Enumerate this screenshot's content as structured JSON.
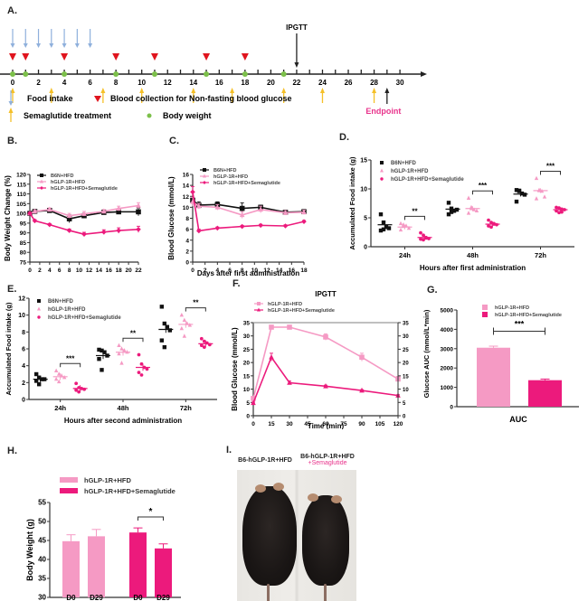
{
  "panels": {
    "A": "A.",
    "B": "B.",
    "C": "C.",
    "D": "D.",
    "E": "E.",
    "F": "F.",
    "G": "G.",
    "H": "H.",
    "I": "I."
  },
  "timeline": {
    "ticks": [
      0,
      1,
      2,
      3,
      4,
      5,
      6,
      7,
      8,
      9,
      10,
      11,
      12,
      13,
      14,
      15,
      16,
      17,
      18,
      19,
      20,
      21,
      22,
      23,
      24,
      25,
      26,
      27,
      28,
      29,
      30
    ],
    "tick_labels": [
      0,
      2,
      4,
      6,
      8,
      10,
      12,
      14,
      16,
      18,
      20,
      22,
      24,
      26,
      28,
      30
    ],
    "food_intake_days": [
      0,
      1,
      2,
      3,
      4,
      5,
      6
    ],
    "blood_collection_days": [
      0,
      1,
      4,
      8,
      11,
      15,
      18
    ],
    "body_weight_days": [
      0,
      1,
      4,
      8,
      11,
      15,
      18,
      21
    ],
    "semaglutide_days": [
      0,
      3,
      7,
      10,
      14,
      17,
      21,
      24,
      28
    ],
    "ipgtt_day": 22,
    "ipgtt_label": "IPGTT",
    "endpoint_day": 29,
    "endpoint_label": "Endpoint",
    "legend": {
      "food_intake": "Food intake",
      "blood_collection": "Blood collection for Non-fasting blood glucose",
      "semaglutide": "Semaglutide treatment",
      "body_weight": "Body weight"
    },
    "colors": {
      "food": "#8fb0dc",
      "blood": "#e0141e",
      "sema": "#f5c028",
      "bw": "#7cc04a",
      "endpoint": "#e8348c"
    }
  },
  "colors": {
    "black": "#111111",
    "light_pink": "#f59ac4",
    "hot_pink": "#ec1a7c"
  },
  "chart_data": [
    {
      "id": "B",
      "type": "line",
      "title": "",
      "xlabel": "Days after first administration",
      "ylabel": "Body Weight Change (%)",
      "xlim": [
        0,
        22
      ],
      "ylim": [
        75,
        120
      ],
      "xticks": [
        0,
        2,
        4,
        6,
        8,
        10,
        12,
        14,
        16,
        18,
        20,
        22
      ],
      "yticks": [
        75,
        80,
        85,
        90,
        95,
        100,
        105,
        110,
        115,
        120
      ],
      "legend_position": "top-left",
      "series": [
        {
          "name": "B6N+HFD",
          "color": "#111111",
          "marker": "square",
          "x": [
            0,
            1,
            4,
            8,
            11,
            15,
            18,
            22
          ],
          "y": [
            100,
            101,
            101.5,
            97.2,
            98.8,
            100.5,
            100.8,
            100.8
          ],
          "err": [
            0.5,
            0.8,
            0.8,
            2.0,
            1.2,
            1.0,
            1.2,
            2.0
          ]
        },
        {
          "name": "hGLP-1R+HFD",
          "color": "#f59ac4",
          "marker": "triangle",
          "x": [
            0,
            1,
            4,
            8,
            11,
            15,
            18,
            22
          ],
          "y": [
            100,
            101,
            102,
            98.8,
            99.8,
            101,
            102.5,
            104
          ],
          "err": [
            0.5,
            0.8,
            0.8,
            1.2,
            1.2,
            1.0,
            1.2,
            1.5
          ]
        },
        {
          "name": "hGLP-1R+HFD+Semaglutide",
          "color": "#ec1a7c",
          "marker": "diamond",
          "x": [
            0,
            1,
            4,
            8,
            11,
            15,
            18,
            22
          ],
          "y": [
            100,
            96.2,
            94.2,
            91.2,
            89.3,
            90.4,
            91.2,
            91.8
          ],
          "err": [
            0.5,
            0.6,
            0.6,
            0.8,
            1.0,
            1.2,
            1.4,
            1.6
          ]
        }
      ]
    },
    {
      "id": "C",
      "type": "line",
      "title": "",
      "xlabel": "Days after first administration",
      "ylabel": "Blood Glucose (mmol/L)",
      "xlim": [
        0,
        18
      ],
      "ylim": [
        0,
        16
      ],
      "xticks": [
        0,
        2,
        4,
        6,
        8,
        10,
        12,
        14,
        16,
        18
      ],
      "yticks": [
        0,
        2,
        4,
        6,
        8,
        10,
        12,
        14,
        16
      ],
      "legend_position": "top",
      "series": [
        {
          "name": "B6N+HFD",
          "color": "#111111",
          "marker": "square",
          "x": [
            0,
            1,
            4,
            8,
            11,
            15,
            18
          ],
          "y": [
            11.3,
            10.4,
            10.5,
            9.8,
            10.0,
            9.1,
            9.2
          ],
          "err": [
            0.5,
            0.6,
            0.5,
            1.0,
            0.4,
            0.4,
            0.4
          ]
        },
        {
          "name": "hGLP-1R+HFD",
          "color": "#f59ac4",
          "marker": "triangle",
          "x": [
            0,
            1,
            4,
            8,
            11,
            15,
            18
          ],
          "y": [
            11.0,
            10.2,
            10.0,
            8.6,
            9.6,
            9.0,
            9.1
          ],
          "err": [
            0.8,
            0.5,
            0.5,
            0.6,
            0.6,
            0.4,
            0.4
          ]
        },
        {
          "name": "hGLP-1R+HFD+Semaglutide",
          "color": "#ec1a7c",
          "marker": "diamond",
          "x": [
            0,
            1,
            4,
            8,
            11,
            15,
            18
          ],
          "y": [
            12.8,
            5.7,
            6.2,
            6.5,
            6.7,
            6.6,
            7.4
          ],
          "err": [
            1.0,
            0.3,
            0.2,
            0.2,
            0.2,
            0.2,
            0.2
          ]
        }
      ]
    },
    {
      "id": "D",
      "type": "scatter",
      "title": "",
      "xlabel": "Hours after first administration",
      "ylabel": "Accumulated Food intake (g)",
      "ylim": [
        0,
        15
      ],
      "yticks": [
        0,
        5,
        10,
        15
      ],
      "categories": [
        "24h",
        "48h",
        "72h"
      ],
      "legend_position": "top-left",
      "significance": [
        "**",
        "***",
        "***"
      ],
      "series": [
        {
          "name": "B6N+HFD",
          "color": "#111111",
          "marker": "square",
          "points": [
            [
              5.6,
              4.2,
              3.4,
              3.2,
              2.8,
              3.0
            ],
            [
              7.6,
              6.6,
              6.2,
              6.4,
              5.6,
              6.0
            ],
            [
              9.8,
              9.6,
              9.2,
              9.0,
              7.8,
              9.7
            ]
          ],
          "mean": [
            3.8,
            6.5,
            9.1
          ]
        },
        {
          "name": "hGLP-1R+HFD",
          "color": "#f59ac4",
          "marker": "triangle",
          "points": [
            [
              4.0,
              3.8,
              3.6,
              3.2,
              2.9,
              3.5
            ],
            [
              8.4,
              6.8,
              6.4,
              6.2,
              5.8,
              6.6
            ],
            [
              11.8,
              9.8,
              9.6,
              8.6,
              8.3,
              9.7
            ]
          ],
          "mean": [
            3.4,
            6.6,
            9.7
          ]
        },
        {
          "name": "hGLP-1R+HFD+Semaglutide",
          "color": "#ec1a7c",
          "marker": "circle",
          "points": [
            [
              2.4,
              2.0,
              1.6,
              1.4,
              1.3,
              1.2,
              1.5
            ],
            [
              4.6,
              4.2,
              4.0,
              3.8,
              3.6,
              3.4,
              3.9
            ],
            [
              6.8,
              6.7,
              6.5,
              6.4,
              6.2,
              5.9,
              6.0
            ]
          ],
          "mean": [
            1.6,
            3.9,
            6.4
          ]
        }
      ]
    },
    {
      "id": "E",
      "type": "scatter",
      "title": "",
      "xlabel": "Hours after second administration",
      "ylabel": "Accumulated Food intake (g)",
      "ylim": [
        0,
        12
      ],
      "yticks": [
        0,
        2,
        4,
        6,
        8,
        10,
        12
      ],
      "categories": [
        "24h",
        "48h",
        "72h"
      ],
      "legend_position": "top-left",
      "significance": [
        "***",
        "**",
        "**"
      ],
      "series": [
        {
          "name": "B6N+HFD",
          "color": "#111111",
          "marker": "square",
          "points": [
            [
              3.0,
              2.6,
              2.4,
              2.4,
              2.2,
              1.8
            ],
            [
              5.9,
              5.8,
              5.6,
              5.2,
              4.8,
              3.5
            ],
            [
              11.0,
              9.0,
              8.6,
              8.2,
              7.0,
              6.2
            ]
          ],
          "mean": [
            2.4,
            5.2,
            8.3
          ]
        },
        {
          "name": "hGLP-1R+HFD",
          "color": "#f59ac4",
          "marker": "triangle",
          "points": [
            [
              3.4,
              3.0,
              2.8,
              2.6,
              2.4,
              2.1
            ],
            [
              6.4,
              6.0,
              5.8,
              5.6,
              5.4,
              4.3
            ],
            [
              10.0,
              9.4,
              9.0,
              8.8,
              8.4,
              7.5
            ]
          ],
          "mean": [
            2.7,
            5.6,
            8.9
          ]
        },
        {
          "name": "hGLP-1R+HFD+Semaglutide",
          "color": "#ec1a7c",
          "marker": "circle",
          "points": [
            [
              1.9,
              1.4,
              1.3,
              1.2,
              1.1,
              0.9
            ],
            [
              5.3,
              4.2,
              3.8,
              3.6,
              3.2,
              2.9
            ],
            [
              7.2,
              6.9,
              6.7,
              6.5,
              6.4,
              6.2
            ]
          ],
          "mean": [
            1.3,
            3.8,
            6.6
          ]
        }
      ]
    },
    {
      "id": "F",
      "type": "line",
      "title": "IPGTT",
      "xlabel": "Time (min)",
      "ylabel": "Blood Glucose (mmol/L)",
      "xlim": [
        0,
        120
      ],
      "ylim": [
        0,
        35
      ],
      "xticks": [
        0,
        15,
        30,
        45,
        60,
        75,
        90,
        105,
        120
      ],
      "yticks": [
        0,
        5,
        10,
        15,
        20,
        25,
        30,
        35
      ],
      "legend_position": "top-left",
      "series": [
        {
          "name": "hGLP-1R+HFD",
          "color": "#f59ac4",
          "marker": "square",
          "x": [
            0,
            15,
            30,
            60,
            90,
            120
          ],
          "y": [
            6.5,
            33.3,
            33.3,
            29.6,
            22.0,
            13.8
          ],
          "err": [
            0.6,
            0.5,
            0.5,
            1.2,
            1.5,
            1.0
          ]
        },
        {
          "name": "hGLP-1R+HFD+Semaglutide",
          "color": "#ec1a7c",
          "marker": "triangle",
          "x": [
            0,
            15,
            30,
            60,
            90,
            120
          ],
          "y": [
            4.8,
            22.0,
            12.4,
            11.1,
            9.5,
            7.6
          ],
          "err": [
            0.3,
            1.5,
            0.6,
            0.4,
            0.3,
            0.3
          ]
        }
      ]
    },
    {
      "id": "G",
      "type": "bar",
      "title": "",
      "xlabel": "AUC",
      "ylabel": "Glucose AUC (mmol/L*min)",
      "ylim": [
        0,
        5000
      ],
      "yticks": [
        0,
        1000,
        2000,
        3000,
        4000,
        5000
      ],
      "legend_position": "top-left",
      "significance": "***",
      "series": [
        {
          "name": "hGLP-1R+HFD",
          "color": "#f59ac4",
          "value": 3050,
          "err": 80
        },
        {
          "name": "hGLP-1R+HFD+Semaglutide",
          "color": "#ec1a7c",
          "value": 1370,
          "err": 60
        }
      ]
    },
    {
      "id": "H",
      "type": "bar",
      "title": "",
      "xlabel": "",
      "ylabel": "Body Weight (g)",
      "ylim": [
        30,
        55
      ],
      "yticks": [
        30,
        35,
        40,
        45,
        50,
        55
      ],
      "categories": [
        "D0",
        "D29",
        "D0",
        "D29"
      ],
      "legend_position": "top-left",
      "significance": "*",
      "series": [
        {
          "name": "hGLP-1R+HFD",
          "color": "#f59ac4",
          "values": [
            44.8,
            46.1
          ],
          "err": [
            1.7,
            1.8
          ]
        },
        {
          "name": "hGLP-1R+HFD+Semaglutide",
          "color": "#ec1a7c",
          "values": [
            47.1,
            42.9
          ],
          "err": [
            1.2,
            1.2
          ]
        }
      ]
    }
  ],
  "photo": {
    "label_left": "B6-hGLP-1R+HFD",
    "label_right_line1": "B6-hGLP-1R+HFD",
    "label_right_line2": "+Semaglutide",
    "label_right_line2_color": "#e8348c"
  }
}
